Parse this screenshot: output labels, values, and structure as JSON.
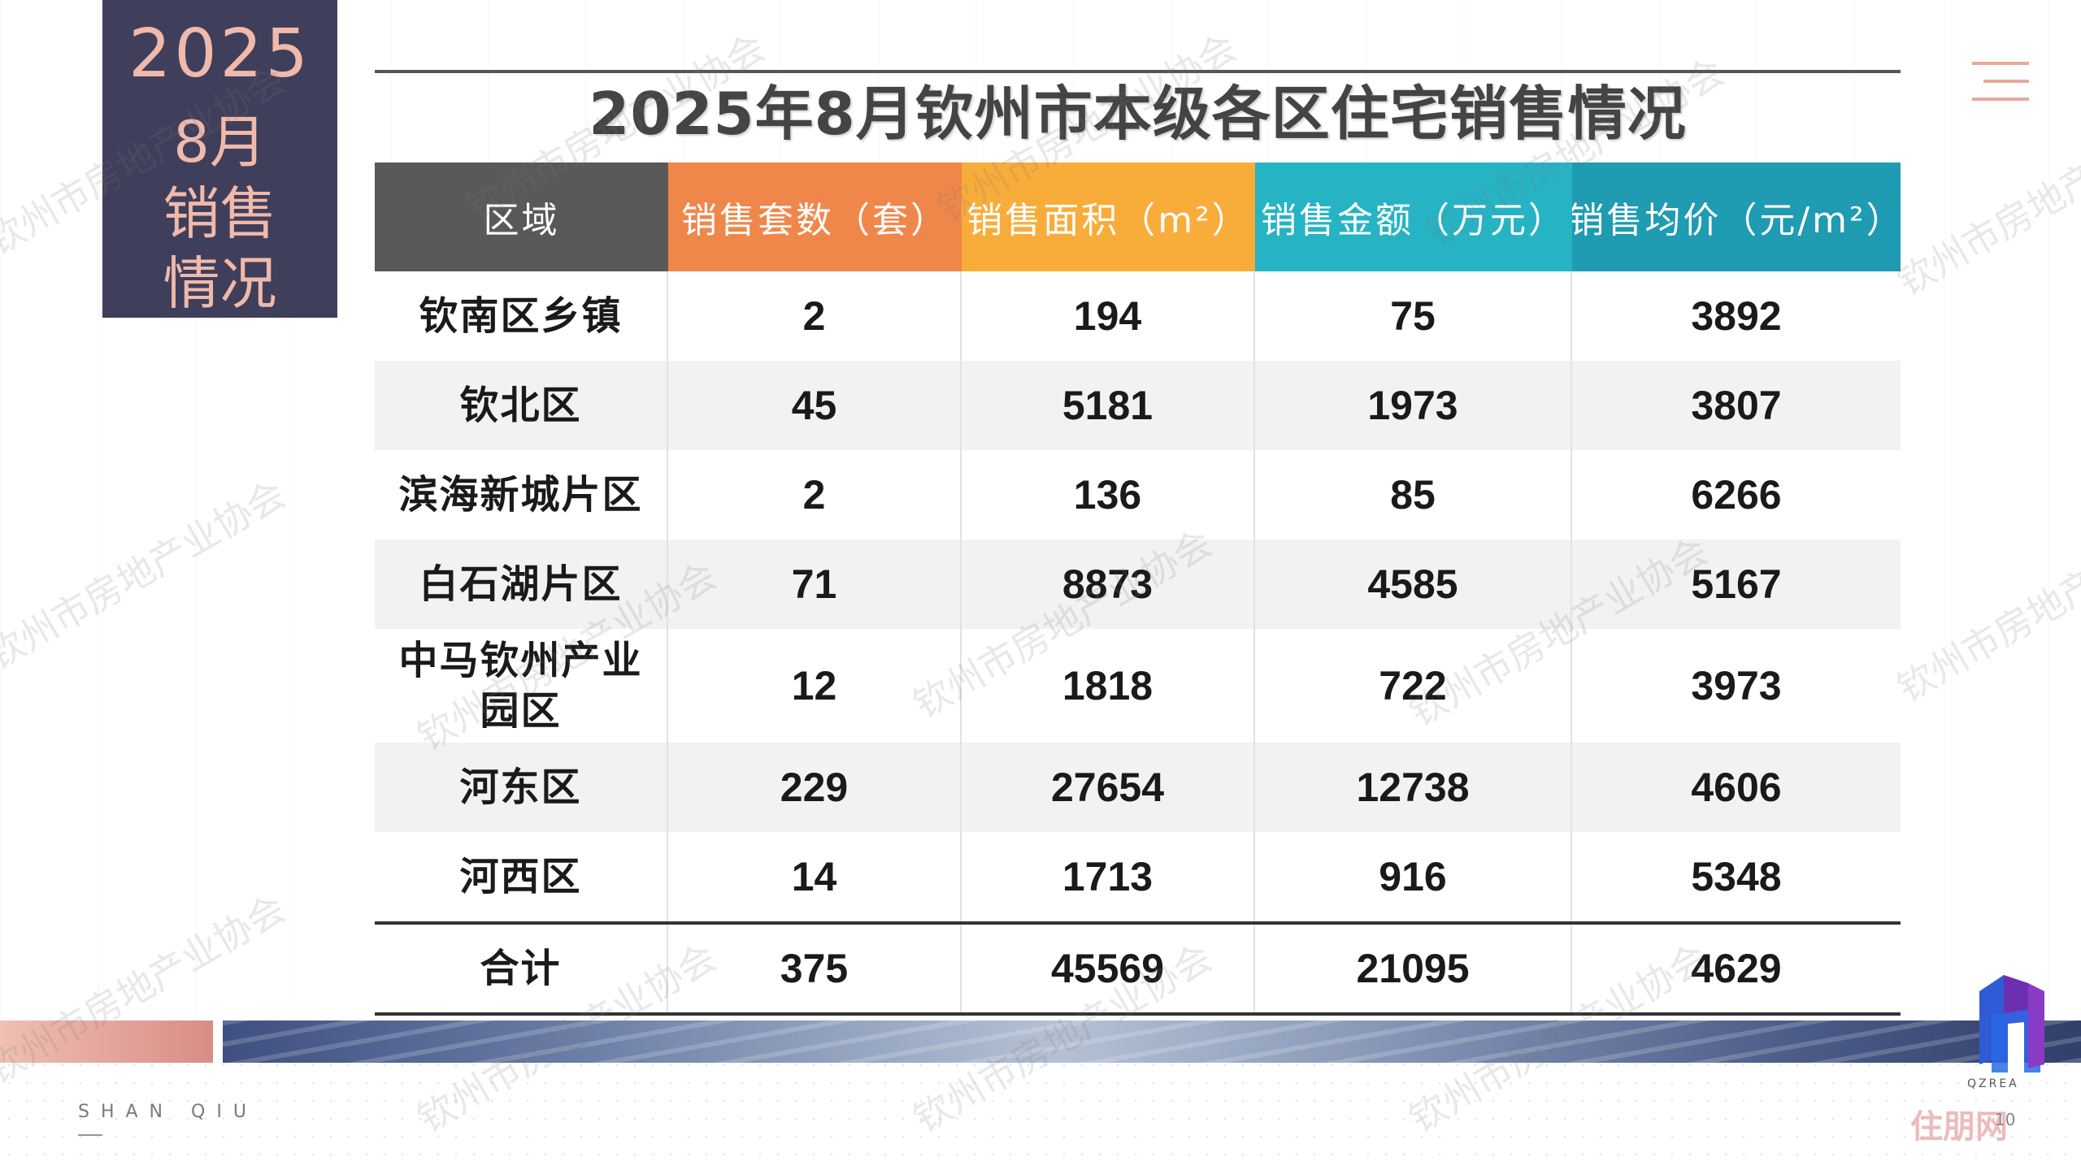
{
  "side_block": {
    "year": "2025",
    "line1": "8月",
    "line2": "销售",
    "line3": "情况"
  },
  "title": "2025年8月钦州市本级各区住宅销售情况",
  "table": {
    "headers": [
      "区域",
      "销售套数（套）",
      "销售面积（m²）",
      "销售金额（万元）",
      "销售均价（元/m²）"
    ],
    "rows": [
      [
        "钦南区乡镇",
        "2",
        "194",
        "75",
        "3892"
      ],
      [
        "钦北区",
        "45",
        "5181",
        "1973",
        "3807"
      ],
      [
        "滨海新城片区",
        "2",
        "136",
        "85",
        "6266"
      ],
      [
        "白石湖片区",
        "71",
        "8873",
        "4585",
        "5167"
      ],
      [
        "中马钦州产业园区",
        "12",
        "1818",
        "722",
        "3973"
      ],
      [
        "河东区",
        "229",
        "27654",
        "12738",
        "4606"
      ],
      [
        "河西区",
        "14",
        "1713",
        "916",
        "5348"
      ]
    ],
    "total": [
      "合计",
      "375",
      "45569",
      "21095",
      "4629"
    ]
  },
  "footer": {
    "brand": "SHAN QIU",
    "logo_text": "QZREA",
    "site_logo": "住朋网",
    "page_number": "10"
  },
  "watermark": "钦州市房地产业协会",
  "colors": {
    "side_block_bg": "#3f3f5c",
    "side_block_text": "#f0b9a9",
    "header_region": "#595959",
    "header_units": "#f0874a",
    "header_area": "#f8ad3b",
    "header_amount": "#26b4c4",
    "header_price": "#1f9bb2"
  },
  "icons": {
    "menu": "hamburger-menu-icon",
    "logo": "qzrea-logo-icon"
  }
}
